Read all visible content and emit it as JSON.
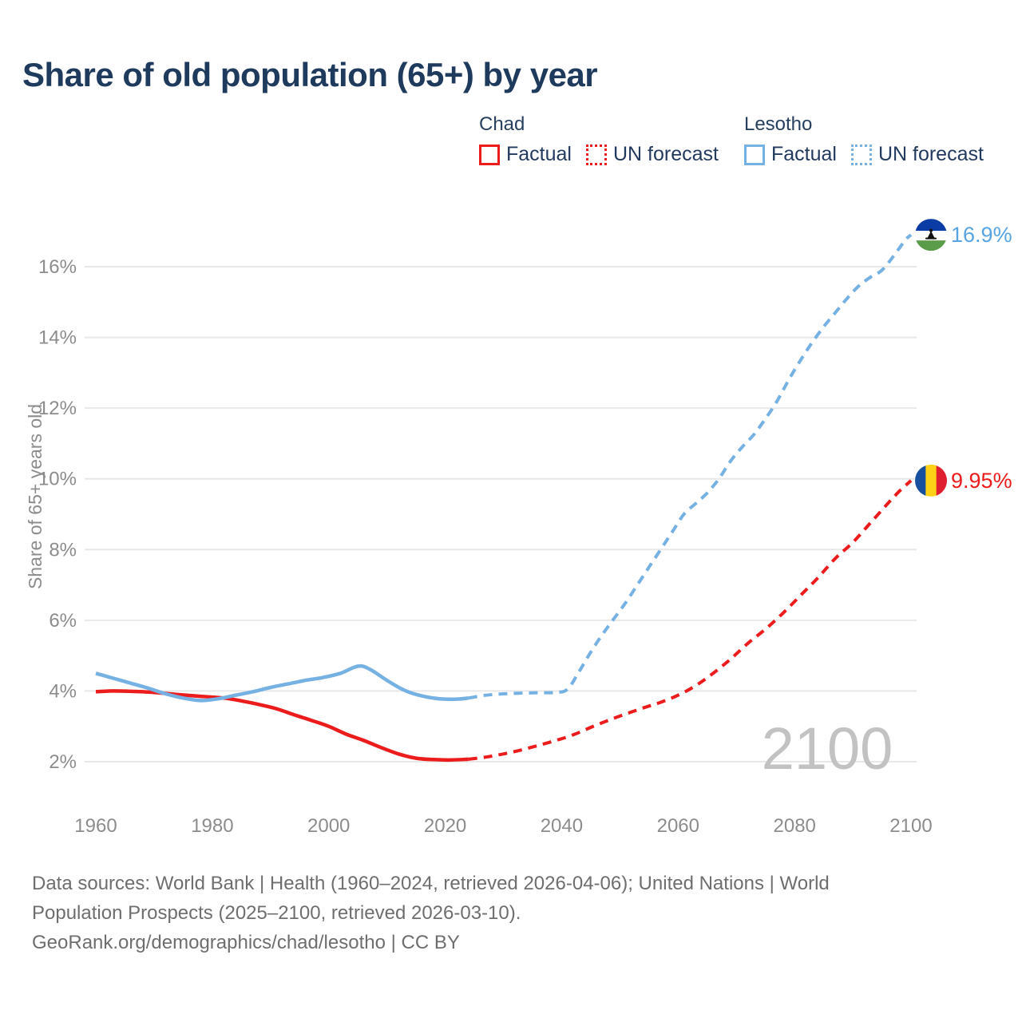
{
  "title": "Share of old population (65+) by year",
  "legend": {
    "groups": [
      {
        "country": "Chad",
        "color": "#ec1b1c",
        "items": [
          {
            "label": "Factual",
            "style": "solid"
          },
          {
            "label": "UN forecast",
            "style": "dotted"
          }
        ]
      },
      {
        "country": "Lesotho",
        "color": "#76b1e4",
        "items": [
          {
            "label": "Factual",
            "style": "solid"
          },
          {
            "label": "UN forecast",
            "style": "dotted"
          }
        ]
      }
    ]
  },
  "chart_data": {
    "type": "line",
    "title": "Share of old population (65+) by year",
    "xlabel": "",
    "ylabel": "Share of 65+ years old",
    "xlim": [
      1955,
      2119
    ],
    "ylim_percent": [
      1,
      17.5
    ],
    "x_ticks": [
      1960,
      1980,
      2000,
      2020,
      2040,
      2060,
      2080,
      2100
    ],
    "y_ticks": [
      "2%",
      "4%",
      "6%",
      "8%",
      "10%",
      "12%",
      "14%",
      "16%"
    ],
    "y_tick_values": [
      2,
      4,
      6,
      8,
      10,
      12,
      14,
      16
    ],
    "grid": "horizontal",
    "legend_position": "top-right",
    "watermark": "2100",
    "grid_color": "#e8e8e8",
    "tick_color": "#8c8c8c",
    "watermark_color": "#c2c2c2",
    "series": [
      {
        "name": "Chad Factual",
        "country": "chad",
        "color": "#ec1b1c",
        "dash": false,
        "points": [
          [
            1960,
            3.98
          ],
          [
            1963,
            4.0
          ],
          [
            1966,
            3.99
          ],
          [
            1970,
            3.96
          ],
          [
            1974,
            3.9
          ],
          [
            1978,
            3.85
          ],
          [
            1982,
            3.8
          ],
          [
            1985,
            3.72
          ],
          [
            1988,
            3.62
          ],
          [
            1991,
            3.5
          ],
          [
            1994,
            3.33
          ],
          [
            1997,
            3.17
          ],
          [
            2000,
            3.0
          ],
          [
            2003,
            2.78
          ],
          [
            2006,
            2.6
          ],
          [
            2009,
            2.4
          ],
          [
            2012,
            2.22
          ],
          [
            2015,
            2.1
          ],
          [
            2018,
            2.06
          ],
          [
            2021,
            2.05
          ],
          [
            2024,
            2.07
          ]
        ]
      },
      {
        "name": "Chad UN forecast",
        "country": "chad",
        "color": "#ec1b1c",
        "dash": true,
        "points": [
          [
            2024,
            2.07
          ],
          [
            2027,
            2.13
          ],
          [
            2030,
            2.22
          ],
          [
            2033,
            2.33
          ],
          [
            2036,
            2.46
          ],
          [
            2039,
            2.6
          ],
          [
            2042,
            2.76
          ],
          [
            2045,
            2.97
          ],
          [
            2048,
            3.17
          ],
          [
            2051,
            3.35
          ],
          [
            2054,
            3.52
          ],
          [
            2057,
            3.68
          ],
          [
            2060,
            3.88
          ],
          [
            2063,
            4.15
          ],
          [
            2066,
            4.5
          ],
          [
            2069,
            4.9
          ],
          [
            2072,
            5.35
          ],
          [
            2075,
            5.75
          ],
          [
            2078,
            6.2
          ],
          [
            2081,
            6.7
          ],
          [
            2084,
            7.2
          ],
          [
            2087,
            7.75
          ],
          [
            2090,
            8.2
          ],
          [
            2093,
            8.75
          ],
          [
            2096,
            9.3
          ],
          [
            2098,
            9.65
          ],
          [
            2100,
            9.95
          ]
        ]
      },
      {
        "name": "Lesotho Factual",
        "country": "lesotho",
        "color": "#76b1e4",
        "dash": false,
        "points": [
          [
            1960,
            4.5
          ],
          [
            1963,
            4.36
          ],
          [
            1966,
            4.22
          ],
          [
            1969,
            4.08
          ],
          [
            1972,
            3.92
          ],
          [
            1975,
            3.8
          ],
          [
            1978,
            3.73
          ],
          [
            1981,
            3.78
          ],
          [
            1984,
            3.88
          ],
          [
            1987,
            3.98
          ],
          [
            1990,
            4.1
          ],
          [
            1993,
            4.2
          ],
          [
            1996,
            4.3
          ],
          [
            1999,
            4.38
          ],
          [
            2002,
            4.5
          ],
          [
            2005,
            4.7
          ],
          [
            2007,
            4.62
          ],
          [
            2010,
            4.3
          ],
          [
            2013,
            4.02
          ],
          [
            2016,
            3.86
          ],
          [
            2019,
            3.78
          ],
          [
            2022,
            3.77
          ],
          [
            2024,
            3.8
          ]
        ]
      },
      {
        "name": "Lesotho UN forecast",
        "country": "lesotho",
        "color": "#76b1e4",
        "dash": true,
        "points": [
          [
            2024,
            3.8
          ],
          [
            2027,
            3.88
          ],
          [
            2030,
            3.92
          ],
          [
            2033,
            3.94
          ],
          [
            2036,
            3.95
          ],
          [
            2039,
            3.96
          ],
          [
            2041,
            4.05
          ],
          [
            2043,
            4.55
          ],
          [
            2045,
            5.1
          ],
          [
            2047,
            5.6
          ],
          [
            2049,
            6.05
          ],
          [
            2051,
            6.5
          ],
          [
            2053,
            7.0
          ],
          [
            2055,
            7.5
          ],
          [
            2057,
            8.0
          ],
          [
            2059,
            8.5
          ],
          [
            2061,
            9.0
          ],
          [
            2063,
            9.3
          ],
          [
            2065,
            9.6
          ],
          [
            2067,
            10.0
          ],
          [
            2069,
            10.5
          ],
          [
            2071,
            10.9
          ],
          [
            2073,
            11.25
          ],
          [
            2075,
            11.7
          ],
          [
            2077,
            12.2
          ],
          [
            2079,
            12.8
          ],
          [
            2081,
            13.35
          ],
          [
            2083,
            13.85
          ],
          [
            2085,
            14.3
          ],
          [
            2087,
            14.7
          ],
          [
            2089,
            15.1
          ],
          [
            2091,
            15.45
          ],
          [
            2093,
            15.7
          ],
          [
            2095,
            15.9
          ],
          [
            2097,
            16.3
          ],
          [
            2099,
            16.75
          ],
          [
            2100,
            16.9
          ]
        ]
      }
    ],
    "end_labels": [
      {
        "country": "lesotho",
        "text": "16.9%",
        "value": 16.9,
        "color": "#58a3e2"
      },
      {
        "country": "chad",
        "text": "9.95%",
        "value": 9.95,
        "color": "#ec1b1c"
      }
    ],
    "flags": {
      "lesotho": {
        "type": "horizontal-bands",
        "colors": [
          "#0b3ba5",
          "#ffffff",
          "#5b9c4b"
        ],
        "emblem": "black-mokorotlo-hat"
      },
      "chad": {
        "type": "vertical-stripes",
        "colors": [
          "#16509e",
          "#fdd216",
          "#df1e30"
        ]
      }
    }
  },
  "footer": {
    "lines": [
      "Data sources: World Bank | Health (1960–2024, retrieved 2026-04-06); United Nations | World",
      "Population Prospects (2025–2100, retrieved 2026-03-10).",
      "GeoRank.org/demographics/chad/lesotho | CC BY"
    ]
  }
}
